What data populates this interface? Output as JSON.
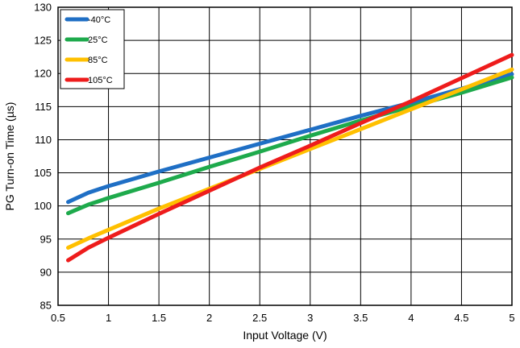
{
  "chart_data": {
    "type": "line",
    "title": "",
    "xlabel": "Input Voltage (V)",
    "ylabel": "PG Turn-on Time (µs)",
    "xlim": [
      0.5,
      5
    ],
    "ylim": [
      85,
      130
    ],
    "xticks": [
      0.5,
      1,
      1.5,
      2,
      2.5,
      3,
      3.5,
      4,
      4.5,
      5
    ],
    "xtick_labels": [
      "0.5",
      "1",
      "1.5",
      "2",
      "2.5",
      "3",
      "3.5",
      "4",
      "4.5",
      "5"
    ],
    "yticks": [
      85,
      90,
      95,
      100,
      105,
      110,
      115,
      120,
      125,
      130
    ],
    "ytick_labels": [
      "85",
      "90",
      "95",
      "100",
      "105",
      "110",
      "115",
      "120",
      "125",
      "130"
    ],
    "grid": true,
    "legend_position": "top-left",
    "series": [
      {
        "name": "-40°C",
        "color": "#1f6fc5",
        "x": [
          0.6,
          0.8,
          1.0,
          1.5,
          2.0,
          2.5,
          3.0,
          3.5,
          4.0,
          4.5,
          5.0
        ],
        "y": [
          100.6,
          102.0,
          103.0,
          105.2,
          107.3,
          109.4,
          111.5,
          113.6,
          115.6,
          117.7,
          119.9
        ]
      },
      {
        "name": "25°C",
        "color": "#1eaa4c",
        "x": [
          0.6,
          0.8,
          1.0,
          1.5,
          2.0,
          2.5,
          3.0,
          3.5,
          4.0,
          4.5,
          5.0
        ],
        "y": [
          98.9,
          100.2,
          101.2,
          103.5,
          105.9,
          108.2,
          110.6,
          112.9,
          115.0,
          117.1,
          119.4
        ]
      },
      {
        "name": "85°C",
        "color": "#ffc000",
        "x": [
          0.6,
          0.8,
          1.0,
          1.5,
          2.0,
          2.5,
          3.0,
          3.5,
          4.0,
          4.5,
          5.0
        ],
        "y": [
          93.7,
          95.1,
          96.4,
          99.6,
          102.6,
          105.6,
          108.6,
          111.6,
          114.6,
          117.6,
          120.6
        ]
      },
      {
        "name": "105°C",
        "color": "#ee1c1c",
        "x": [
          0.6,
          0.8,
          1.0,
          1.5,
          2.0,
          2.5,
          3.0,
          3.5,
          4.0,
          4.5,
          5.0
        ],
        "y": [
          91.8,
          93.7,
          95.2,
          98.8,
          102.3,
          105.8,
          109.1,
          112.5,
          115.8,
          119.3,
          122.8
        ]
      }
    ]
  }
}
